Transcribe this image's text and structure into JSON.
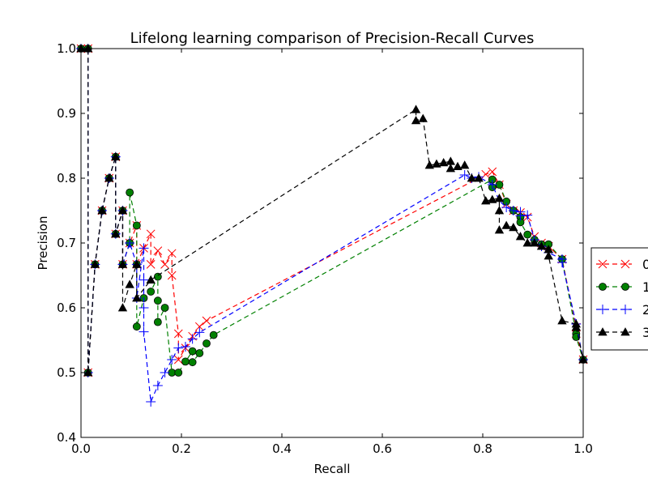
{
  "chart_data": {
    "type": "line",
    "title": "Lifelong learning comparison of Precision-Recall Curves",
    "xlabel": "Recall",
    "ylabel": "Precision",
    "xlim": [
      0.0,
      1.0
    ],
    "ylim": [
      0.4,
      1.0
    ],
    "xticks": [
      "0.0",
      "0.2",
      "0.4",
      "0.6",
      "0.8",
      "1.0"
    ],
    "yticks": [
      "0.4",
      "0.5",
      "0.6",
      "0.7",
      "0.8",
      "0.9",
      "1.0"
    ],
    "grid": false,
    "legend_position": "right",
    "series": [
      {
        "name": "0",
        "color": "#ff0000",
        "marker": "x",
        "x": [
          0.0,
          0.014,
          0.014,
          0.028,
          0.042,
          0.056,
          0.069,
          0.069,
          0.083,
          0.083,
          0.097,
          0.111,
          0.111,
          0.125,
          0.139,
          0.139,
          0.153,
          0.167,
          0.181,
          0.181,
          0.194,
          0.194,
          0.208,
          0.222,
          0.236,
          0.25,
          0.806,
          0.819,
          0.833,
          0.847,
          0.861,
          0.875,
          0.889,
          0.903,
          0.917,
          0.931,
          0.958,
          0.986,
          0.986,
          1.0
        ],
        "y": [
          1.0,
          1.0,
          0.5,
          0.667,
          0.75,
          0.8,
          0.833,
          0.714,
          0.75,
          0.667,
          0.7,
          0.727,
          0.667,
          0.692,
          0.714,
          0.667,
          0.688,
          0.667,
          0.684,
          0.65,
          0.56,
          0.52,
          0.538,
          0.556,
          0.571,
          0.58,
          0.806,
          0.81,
          0.79,
          0.76,
          0.75,
          0.747,
          0.74,
          0.71,
          0.7,
          0.695,
          0.675,
          0.57,
          0.56,
          0.52
        ]
      },
      {
        "name": "1",
        "color": "#008000",
        "marker": "o",
        "x": [
          0.0,
          0.014,
          0.014,
          0.028,
          0.042,
          0.056,
          0.069,
          0.069,
          0.083,
          0.083,
          0.097,
          0.097,
          0.111,
          0.111,
          0.111,
          0.125,
          0.139,
          0.153,
          0.153,
          0.153,
          0.167,
          0.181,
          0.194,
          0.208,
          0.222,
          0.222,
          0.236,
          0.25,
          0.264,
          0.819,
          0.819,
          0.833,
          0.847,
          0.861,
          0.875,
          0.875,
          0.889,
          0.903,
          0.917,
          0.931,
          0.958,
          0.986,
          0.986,
          1.0
        ],
        "y": [
          1.0,
          1.0,
          0.5,
          0.667,
          0.75,
          0.8,
          0.833,
          0.714,
          0.75,
          0.667,
          0.7,
          0.778,
          0.727,
          0.667,
          0.571,
          0.615,
          0.625,
          0.648,
          0.611,
          0.578,
          0.6,
          0.5,
          0.5,
          0.517,
          0.533,
          0.516,
          0.53,
          0.545,
          0.558,
          0.798,
          0.786,
          0.79,
          0.764,
          0.75,
          0.74,
          0.732,
          0.713,
          0.705,
          0.698,
          0.698,
          0.675,
          0.56,
          0.555,
          0.52
        ]
      },
      {
        "name": "2",
        "color": "#0000ff",
        "marker": "+",
        "x": [
          0.0,
          0.014,
          0.014,
          0.028,
          0.042,
          0.056,
          0.069,
          0.069,
          0.083,
          0.083,
          0.097,
          0.111,
          0.111,
          0.125,
          0.125,
          0.125,
          0.125,
          0.139,
          0.153,
          0.167,
          0.181,
          0.194,
          0.208,
          0.222,
          0.236,
          0.764,
          0.778,
          0.792,
          0.819,
          0.833,
          0.847,
          0.861,
          0.875,
          0.875,
          0.889,
          0.903,
          0.917,
          0.931,
          0.958,
          0.958,
          0.986,
          1.0
        ],
        "y": [
          1.0,
          1.0,
          0.5,
          0.667,
          0.75,
          0.8,
          0.833,
          0.714,
          0.75,
          0.667,
          0.7,
          0.667,
          0.615,
          0.692,
          0.643,
          0.6,
          0.563,
          0.455,
          0.48,
          0.5,
          0.52,
          0.538,
          0.54,
          0.552,
          0.562,
          0.805,
          0.8,
          0.802,
          0.79,
          0.765,
          0.755,
          0.75,
          0.748,
          0.742,
          0.743,
          0.705,
          0.695,
          0.685,
          0.675,
          0.67,
          0.575,
          0.52
        ]
      },
      {
        "name": "3",
        "color": "#000000",
        "marker": "^",
        "x": [
          0.0,
          0.014,
          0.014,
          0.028,
          0.042,
          0.056,
          0.069,
          0.069,
          0.083,
          0.083,
          0.083,
          0.097,
          0.111,
          0.111,
          0.139,
          0.667,
          0.667,
          0.681,
          0.694,
          0.708,
          0.722,
          0.736,
          0.736,
          0.75,
          0.764,
          0.778,
          0.792,
          0.806,
          0.819,
          0.833,
          0.833,
          0.833,
          0.847,
          0.861,
          0.875,
          0.889,
          0.903,
          0.917,
          0.931,
          0.931,
          0.958,
          0.986,
          0.986,
          1.0
        ],
        "y": [
          1.0,
          1.0,
          0.5,
          0.667,
          0.75,
          0.8,
          0.833,
          0.714,
          0.75,
          0.667,
          0.6,
          0.636,
          0.667,
          0.615,
          0.643,
          0.906,
          0.889,
          0.892,
          0.82,
          0.822,
          0.824,
          0.826,
          0.815,
          0.818,
          0.82,
          0.8,
          0.8,
          0.765,
          0.767,
          0.769,
          0.75,
          0.72,
          0.727,
          0.724,
          0.71,
          0.7,
          0.7,
          0.695,
          0.69,
          0.68,
          0.58,
          0.575,
          0.57,
          0.52
        ]
      }
    ]
  }
}
